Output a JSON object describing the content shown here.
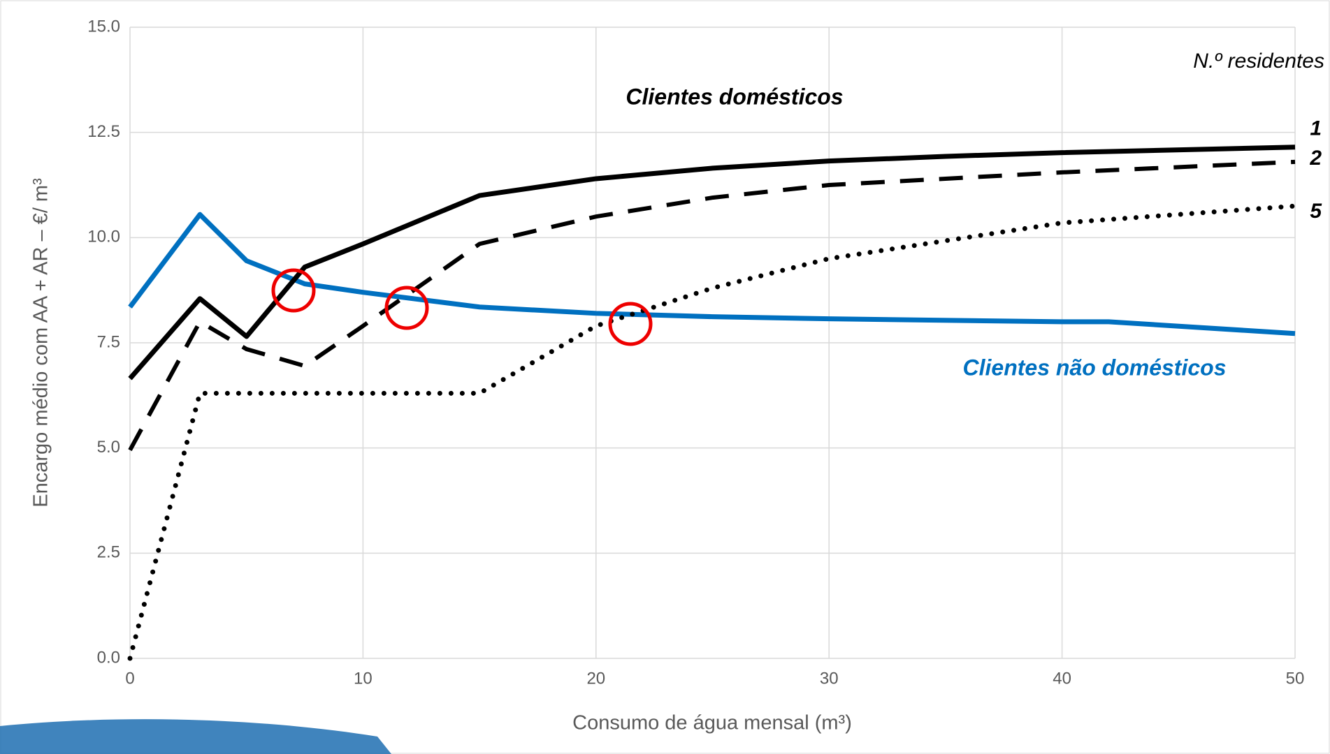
{
  "chart_data": {
    "type": "line",
    "x_label": "Consumo de água mensal (m³)",
    "y_label": "Encargo médio com AA + AR – €/ m³",
    "annotations": [
      "Clientes domésticos",
      "N.º residentes"
    ],
    "xlim": [
      0,
      50
    ],
    "xticks": [
      0,
      10,
      20,
      30,
      40,
      50
    ],
    "ylim": [
      0,
      15
    ],
    "yticks": [
      {
        "value": 0,
        "label": "0.0"
      },
      2.5,
      {
        "value": 5,
        "label": "5.0"
      },
      7.5,
      {
        "value": 10,
        "label": "10.0"
      },
      12.5,
      {
        "value": 15,
        "label": "15.0"
      }
    ],
    "grid": true,
    "series": [
      {
        "name": "Clientes não domésticos",
        "color": "#0070c0",
        "style": "solid",
        "x": [
          0,
          3,
          5,
          7.5,
          10,
          15,
          20,
          25,
          30,
          40,
          42,
          50
        ],
        "values": [
          8.35,
          10.55,
          9.45,
          8.9,
          8.7,
          8.35,
          8.2,
          8.12,
          8.07,
          8.0,
          8.0,
          7.72
        ]
      },
      {
        "name": "1",
        "color": "#000000",
        "style": "solid",
        "x": [
          0,
          3,
          5,
          7.5,
          10,
          15,
          20,
          25,
          30,
          35,
          40,
          50
        ],
        "values": [
          6.65,
          8.55,
          7.65,
          9.3,
          9.85,
          11.0,
          11.4,
          11.65,
          11.82,
          11.93,
          12.02,
          12.15
        ]
      },
      {
        "name": "2",
        "color": "#000000",
        "style": "dashed",
        "x": [
          0,
          3,
          5,
          7.5,
          10,
          15,
          20,
          25,
          30,
          40,
          50
        ],
        "values": [
          4.95,
          8.0,
          7.35,
          6.95,
          7.9,
          9.85,
          10.5,
          10.95,
          11.25,
          11.55,
          11.8
        ]
      },
      {
        "name": "5",
        "color": "#000000",
        "style": "dotted",
        "x": [
          0,
          3,
          15,
          20,
          25,
          30,
          40,
          50
        ],
        "values": [
          0,
          6.3,
          6.3,
          7.9,
          8.8,
          9.5,
          10.35,
          10.75
        ]
      }
    ]
  }
}
